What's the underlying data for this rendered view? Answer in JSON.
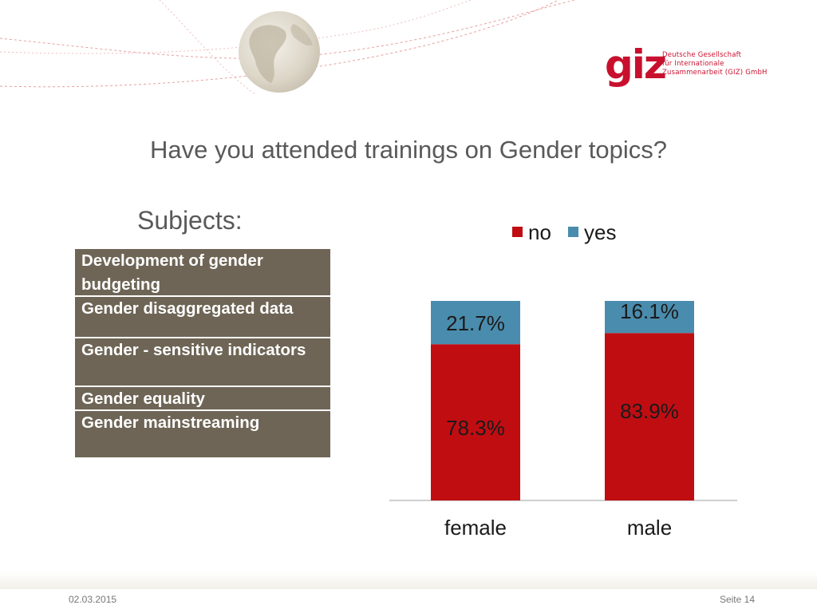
{
  "logo": {
    "mark": "giz",
    "lines": [
      "Deutsche Gesellschaft",
      "für Internationale",
      "Zusammenarbeit (GIZ) GmbH"
    ]
  },
  "title": "Have you attended trainings on Gender topics?",
  "subjects": {
    "heading": "Subjects:",
    "items": [
      "Development of gender budgeting",
      "Gender disaggregated data",
      "Gender - sensitive indicators",
      "Gender equality",
      "Gender mainstreaming"
    ]
  },
  "colors": {
    "no": "#c00d12",
    "yes": "#4a8cad",
    "table_bg": "#6e6556",
    "brand": "#c8102e"
  },
  "chart_data": {
    "type": "bar",
    "stacked": true,
    "categories": [
      "female",
      "male"
    ],
    "series": [
      {
        "name": "no",
        "values": [
          78.3,
          83.9
        ],
        "labels": [
          "78.3%",
          "83.9%"
        ]
      },
      {
        "name": "yes",
        "values": [
          21.7,
          16.1
        ],
        "labels": [
          "21.7%",
          "16.1%"
        ]
      }
    ],
    "ylim": [
      0,
      100
    ],
    "legend": "top",
    "grid": false
  },
  "footer": {
    "date": "02.03.2015",
    "page": "Seite 14"
  }
}
